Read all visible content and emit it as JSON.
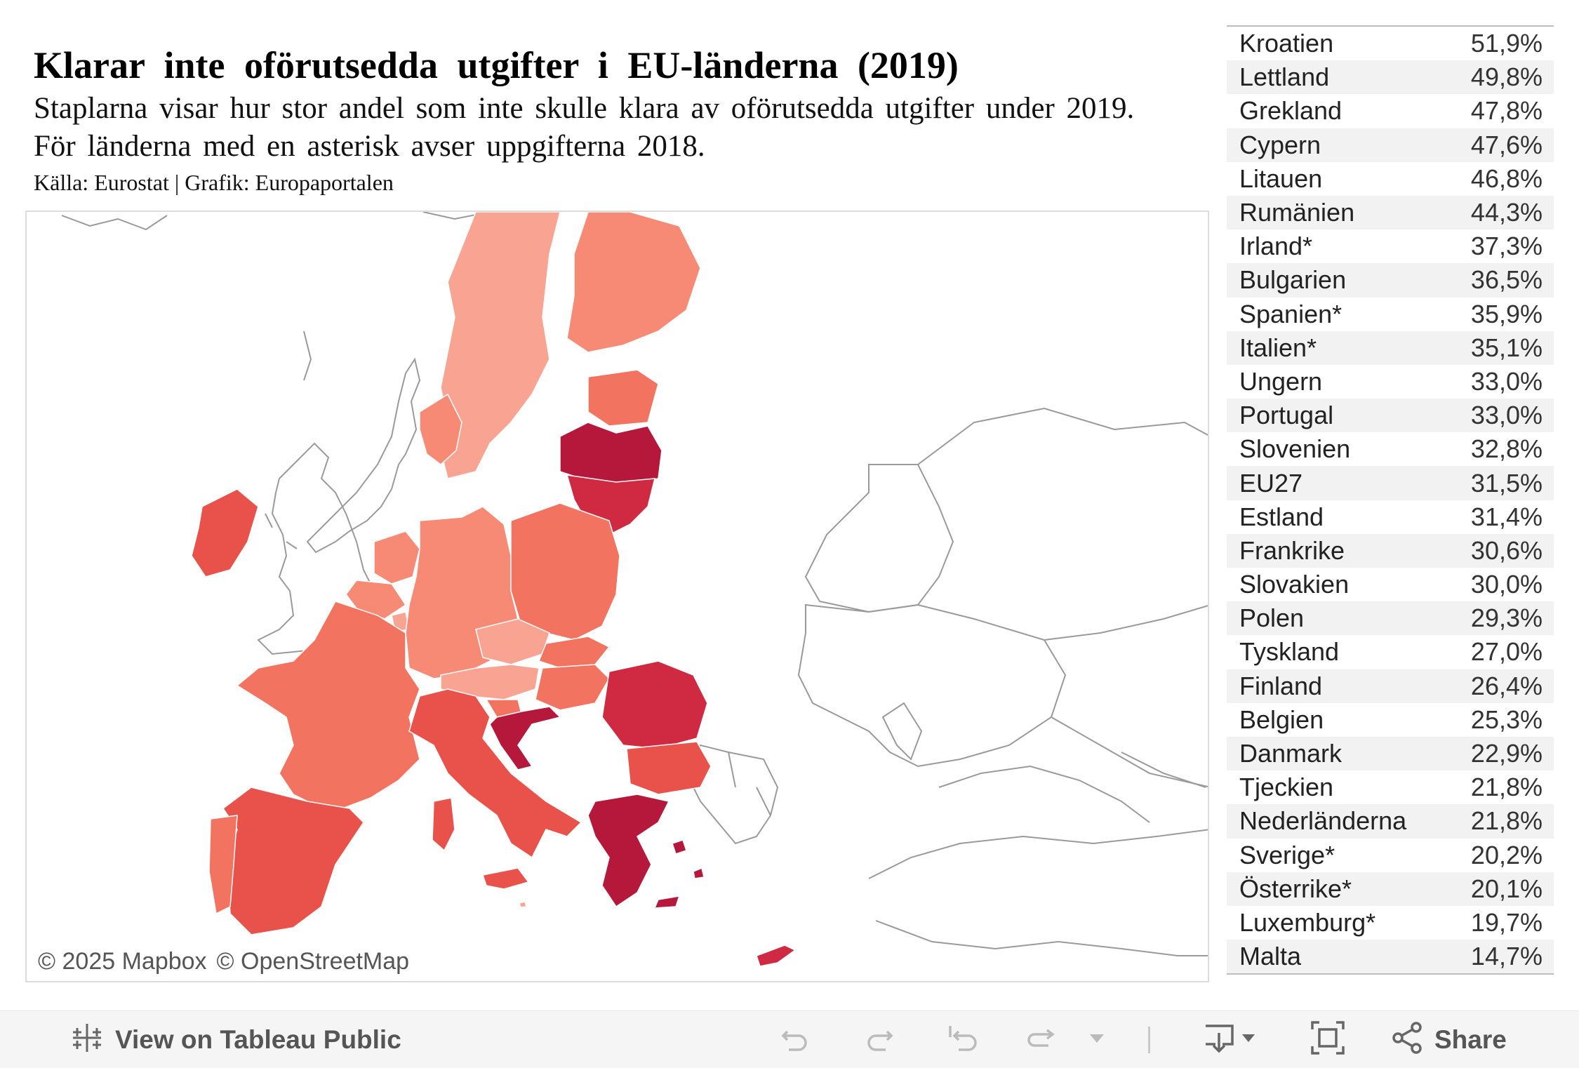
{
  "header": {
    "title": "Klarar inte oförutsedda utgifter i EU-länderna (2019)",
    "subtitle_line1": "Staplarna visar hur stor andel som inte skulle klara av oförutsedda utgifter under 2019.",
    "subtitle_line2": "För länderna med en asterisk avser uppgifterna 2018.",
    "source": "Källa: Eurostat | Grafik: Europaportalen"
  },
  "map": {
    "attribution_mapbox": "© 2025 Mapbox",
    "attribution_osm": "© OpenStreetMap",
    "colors": {
      "dark": "#b5183a",
      "red": "#cf2a42",
      "mid_red": "#e8524a",
      "salmon": "#f2735f",
      "light_salmon": "#f68a75",
      "pale": "#f9a493",
      "outline": "#9a9a9a"
    }
  },
  "table": {
    "rows": [
      {
        "country": "Kroatien",
        "value": "51,9%"
      },
      {
        "country": "Lettland",
        "value": "49,8%"
      },
      {
        "country": "Grekland",
        "value": "47,8%"
      },
      {
        "country": "Cypern",
        "value": "47,6%"
      },
      {
        "country": "Litauen",
        "value": "46,8%"
      },
      {
        "country": "Rumänien",
        "value": "44,3%"
      },
      {
        "country": "Irland*",
        "value": "37,3%"
      },
      {
        "country": "Bulgarien",
        "value": "36,5%"
      },
      {
        "country": "Spanien*",
        "value": "35,9%"
      },
      {
        "country": "Italien*",
        "value": "35,1%"
      },
      {
        "country": "Ungern",
        "value": "33,0%"
      },
      {
        "country": "Portugal",
        "value": "33,0%"
      },
      {
        "country": "Slovenien",
        "value": "32,8%"
      },
      {
        "country": "EU27",
        "value": "31,5%"
      },
      {
        "country": "Estland",
        "value": "31,4%"
      },
      {
        "country": "Frankrike",
        "value": "30,6%"
      },
      {
        "country": "Slovakien",
        "value": "30,0%"
      },
      {
        "country": "Polen",
        "value": "29,3%"
      },
      {
        "country": "Tyskland",
        "value": "27,0%"
      },
      {
        "country": "Finland",
        "value": "26,4%"
      },
      {
        "country": "Belgien",
        "value": "25,3%"
      },
      {
        "country": "Danmark",
        "value": "22,9%"
      },
      {
        "country": "Tjeckien",
        "value": "21,8%"
      },
      {
        "country": "Nederländerna",
        "value": "21,8%"
      },
      {
        "country": "Sverige*",
        "value": "20,2%"
      },
      {
        "country": "Österrike*",
        "value": "20,1%"
      },
      {
        "country": "Luxemburg*",
        "value": "19,7%"
      },
      {
        "country": "Malta",
        "value": "14,7%"
      }
    ]
  },
  "toolbar": {
    "view_label": "View on Tableau Public",
    "share_label": "Share",
    "icons": [
      "tableau-logo-icon",
      "undo-icon",
      "redo-icon",
      "revert-icon",
      "refresh-icon",
      "dropdown-caret-icon",
      "download-icon",
      "fullscreen-icon",
      "share-icon"
    ]
  }
}
